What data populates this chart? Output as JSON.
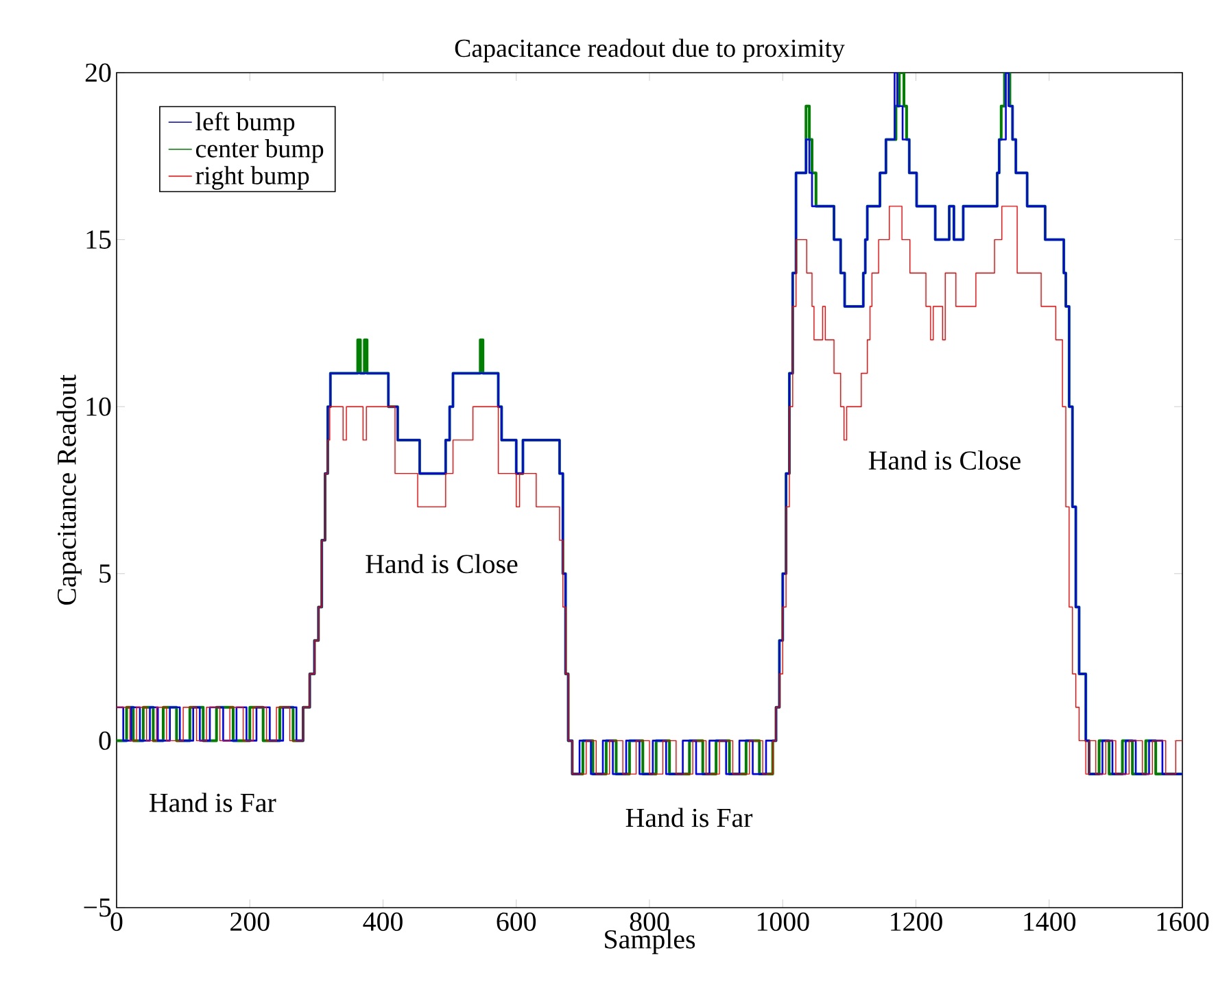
{
  "chart_data": {
    "type": "step",
    "title": "Capacitance readout due to proximity",
    "xlabel": "Samples",
    "ylabel": "Capacitance Readout",
    "xlim": [
      0,
      1600
    ],
    "xticks": [
      0,
      200,
      400,
      600,
      800,
      1000,
      1200,
      1400,
      1600
    ],
    "ylim": [
      -5,
      20
    ],
    "yticks": [
      {
        "value": -5,
        "label": "−5"
      },
      0,
      5,
      10,
      15,
      20
    ],
    "grid": false,
    "legend": "top left",
    "series": [
      {
        "name": "left bump",
        "color": "#0000ff",
        "x": [
          0,
          10,
          22,
          35,
          50,
          62,
          80,
          95,
          115,
          125,
          140,
          160,
          180,
          195,
          210,
          230,
          250,
          270,
          280,
          290,
          297,
          303,
          308,
          313,
          317,
          321,
          408,
          422,
          455,
          494,
          500,
          505,
          573,
          578,
          600,
          610,
          665,
          670,
          674,
          678,
          684,
          695,
          712,
          730,
          745,
          765,
          785,
          805,
          825,
          850,
          870,
          890,
          915,
          935,
          955,
          975,
          990,
          995,
          1000,
          1005,
          1010,
          1015,
          1020,
          1035,
          1040,
          1044,
          1050,
          1077,
          1087,
          1093,
          1121,
          1124,
          1127,
          1146,
          1155,
          1168,
          1172,
          1180,
          1186,
          1190,
          1201,
          1229,
          1250,
          1257,
          1271,
          1322,
          1325,
          1335,
          1339,
          1345,
          1350,
          1367,
          1394,
          1422,
          1425,
          1430,
          1435,
          1440,
          1445,
          1455,
          1460,
          1480,
          1495,
          1515,
          1530,
          1550,
          1570,
          1600
        ],
        "values": [
          1,
          0,
          1,
          0,
          1,
          0,
          1,
          0,
          1,
          0,
          1,
          0,
          1,
          0,
          1,
          0,
          1,
          0,
          1,
          2,
          3,
          4,
          6,
          8,
          10,
          11,
          10,
          9,
          8,
          9,
          10,
          11,
          10,
          9,
          8,
          9,
          8,
          5,
          2,
          0,
          -1,
          0,
          -1,
          0,
          -1,
          0,
          -1,
          0,
          -1,
          0,
          -1,
          0,
          -1,
          0,
          -1,
          0,
          1,
          3,
          5,
          8,
          11,
          14,
          17,
          18,
          17,
          16,
          16,
          15,
          14,
          13,
          14,
          15,
          16,
          17,
          18,
          20,
          19,
          18,
          18,
          17,
          16,
          15,
          16,
          15,
          16,
          17,
          18,
          20,
          19,
          18,
          17,
          16,
          15,
          14,
          13,
          10,
          7,
          4,
          2,
          0,
          -1,
          0,
          -1,
          0,
          -1,
          0,
          -1,
          -1
        ]
      },
      {
        "name": "center bump",
        "color": "#008000",
        "x": [
          0,
          15,
          25,
          40,
          55,
          70,
          90,
          110,
          130,
          150,
          175,
          200,
          220,
          245,
          265,
          280,
          290,
          297,
          303,
          308,
          313,
          317,
          321,
          362,
          366,
          372,
          376,
          408,
          422,
          455,
          494,
          500,
          505,
          546,
          550,
          573,
          578,
          600,
          610,
          665,
          670,
          674,
          678,
          684,
          700,
          715,
          735,
          750,
          770,
          790,
          810,
          830,
          860,
          880,
          900,
          920,
          945,
          965,
          985,
          990,
          995,
          1000,
          1005,
          1010,
          1015,
          1020,
          1035,
          1040,
          1044,
          1050,
          1077,
          1087,
          1093,
          1121,
          1124,
          1127,
          1146,
          1155,
          1170,
          1175,
          1182,
          1186,
          1190,
          1201,
          1229,
          1250,
          1257,
          1271,
          1322,
          1325,
          1328,
          1333,
          1341,
          1345,
          1350,
          1367,
          1394,
          1422,
          1425,
          1430,
          1435,
          1440,
          1445,
          1455,
          1460,
          1475,
          1490,
          1510,
          1525,
          1545,
          1560,
          1600
        ],
        "values": [
          0,
          1,
          0,
          1,
          0,
          1,
          0,
          1,
          0,
          1,
          0,
          1,
          0,
          1,
          0,
          1,
          2,
          3,
          4,
          6,
          8,
          10,
          11,
          12,
          11,
          12,
          11,
          10,
          9,
          8,
          9,
          10,
          11,
          12,
          11,
          10,
          9,
          8,
          9,
          8,
          5,
          2,
          0,
          -1,
          0,
          -1,
          0,
          -1,
          0,
          -1,
          0,
          -1,
          0,
          -1,
          0,
          -1,
          0,
          -1,
          0,
          1,
          3,
          5,
          8,
          11,
          14,
          17,
          19,
          18,
          17,
          16,
          15,
          14,
          13,
          14,
          15,
          16,
          17,
          18,
          19,
          20,
          19,
          18,
          17,
          16,
          15,
          16,
          15,
          16,
          17,
          18,
          19,
          20,
          19,
          18,
          17,
          16,
          15,
          14,
          13,
          10,
          7,
          4,
          2,
          0,
          -1,
          0,
          -1,
          0,
          -1,
          0,
          -1,
          -1
        ]
      },
      {
        "name": "right bump",
        "color": "#ff0000",
        "x": [
          0,
          20,
          30,
          45,
          60,
          75,
          100,
          120,
          135,
          155,
          170,
          190,
          205,
          225,
          240,
          260,
          280,
          290,
          297,
          303,
          308,
          313,
          317,
          320,
          340,
          345,
          370,
          375,
          418,
          452,
          494,
          505,
          535,
          573,
          600,
          605,
          630,
          665,
          670,
          674,
          678,
          684,
          705,
          720,
          740,
          760,
          780,
          800,
          820,
          840,
          865,
          885,
          905,
          925,
          950,
          970,
          985,
          990,
          995,
          1000,
          1005,
          1010,
          1015,
          1020,
          1036,
          1044,
          1047,
          1060,
          1064,
          1077,
          1087,
          1092,
          1096,
          1118,
          1127,
          1131,
          1134,
          1144,
          1160,
          1179,
          1191,
          1215,
          1222,
          1226,
          1240,
          1244,
          1260,
          1290,
          1318,
          1329,
          1352,
          1388,
          1410,
          1420,
          1425,
          1430,
          1435,
          1440,
          1445,
          1455,
          1460,
          1470,
          1485,
          1500,
          1520,
          1540,
          1555,
          1575,
          1590,
          1600
        ],
        "values": [
          1,
          0,
          1,
          0,
          1,
          0,
          1,
          0,
          1,
          0,
          1,
          0,
          1,
          0,
          1,
          0,
          1,
          2,
          3,
          4,
          6,
          8,
          9,
          10,
          9,
          10,
          9,
          10,
          8,
          7,
          8,
          9,
          10,
          8,
          7,
          8,
          7,
          6,
          4,
          2,
          0,
          -1,
          0,
          -1,
          0,
          -1,
          0,
          -1,
          0,
          -1,
          0,
          -1,
          0,
          -1,
          0,
          -1,
          0,
          1,
          2,
          4,
          7,
          10,
          13,
          15,
          14,
          13,
          12,
          13,
          12,
          11,
          10,
          9,
          10,
          11,
          12,
          13,
          14,
          15,
          16,
          15,
          14,
          13,
          12,
          13,
          12,
          14,
          13,
          14,
          15,
          16,
          14,
          13,
          12,
          10,
          7,
          4,
          2,
          1,
          0,
          -1,
          0,
          -1,
          0,
          -1,
          0,
          -1,
          0,
          -1,
          0,
          0
        ]
      }
    ],
    "annotations": [
      "Hand is Far",
      "Hand is Close",
      "Hand is Far",
      "Hand is Close"
    ]
  }
}
